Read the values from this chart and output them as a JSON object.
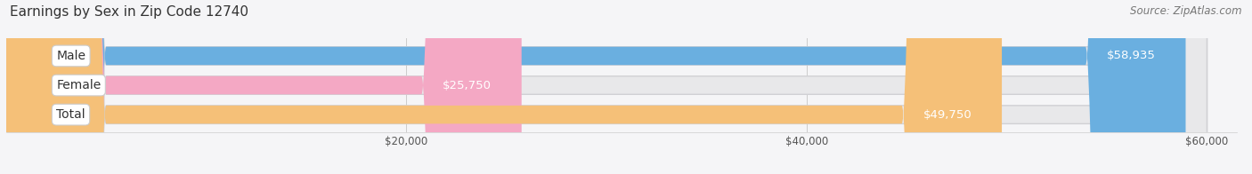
{
  "title": "Earnings by Sex in Zip Code 12740",
  "source": "Source: ZipAtlas.com",
  "categories": [
    "Male",
    "Female",
    "Total"
  ],
  "values": [
    58935,
    25750,
    49750
  ],
  "bar_colors": [
    "#6aafe0",
    "#f4a8c4",
    "#f5c078"
  ],
  "bar_bg_color": "#e8e8ea",
  "value_labels": [
    "$58,935",
    "$25,750",
    "$49,750"
  ],
  "xmin": 0,
  "xmax": 60000,
  "xticks": [
    20000,
    40000,
    60000
  ],
  "xtick_labels": [
    "$20,000",
    "$40,000",
    "$60,000"
  ],
  "title_fontsize": 11,
  "source_fontsize": 8.5,
  "label_fontsize": 10,
  "value_fontsize": 9.5,
  "background_color": "#f5f5f7"
}
